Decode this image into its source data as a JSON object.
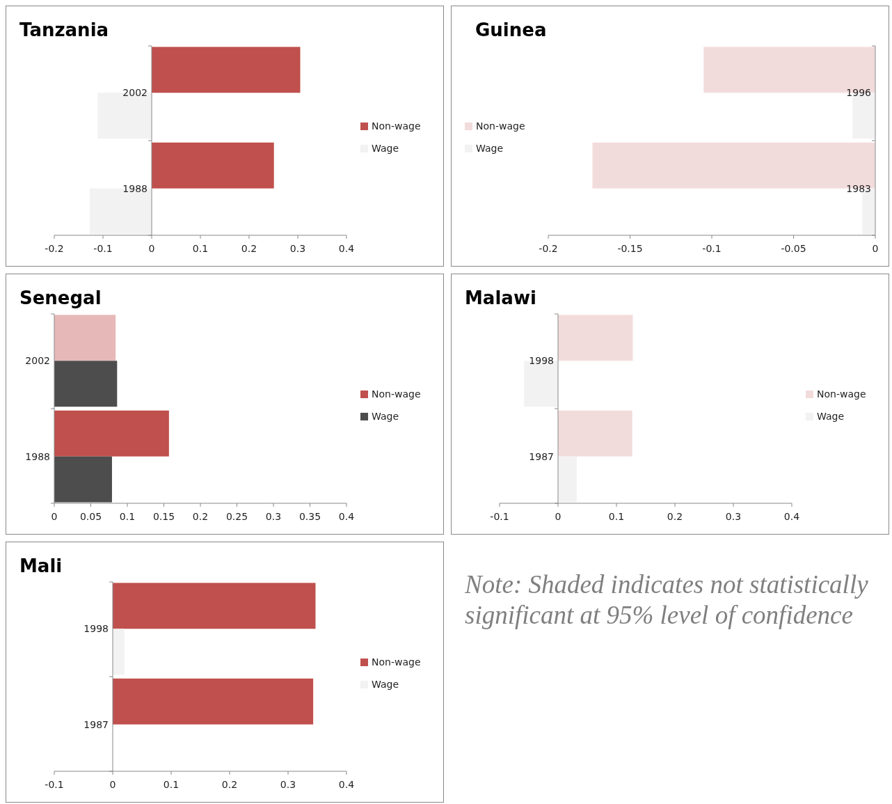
{
  "chart_data": [
    {
      "type": "bar",
      "orientation": "horizontal",
      "title": "Tanzania",
      "categories": [
        "2002",
        "1988"
      ],
      "xlim": [
        -0.2,
        0.4
      ],
      "xticks": [
        -0.2,
        -0.1,
        0,
        0.1,
        0.2,
        0.3,
        0.4
      ],
      "legend": "right",
      "series": [
        {
          "name": "Non-wage",
          "color": "#c0504d",
          "values": [
            0.305,
            0.251
          ]
        },
        {
          "name": "Wage",
          "color": "#f2f2f2",
          "values": [
            -0.111,
            -0.127
          ]
        }
      ]
    },
    {
      "type": "bar",
      "orientation": "horizontal",
      "title": "Guinea",
      "categories": [
        "1996",
        "1983"
      ],
      "xlim": [
        -0.2,
        0
      ],
      "xticks": [
        -0.2,
        -0.15,
        -0.1,
        -0.05,
        0
      ],
      "legend": "left",
      "series": [
        {
          "name": "Non-wage",
          "color": "#f2dcdb",
          "values": [
            -0.105,
            -0.173
          ]
        },
        {
          "name": "Wage",
          "color": "#f2f2f2",
          "values": [
            -0.014,
            -0.008
          ]
        }
      ]
    },
    {
      "type": "bar",
      "orientation": "horizontal",
      "title": "Senegal",
      "categories": [
        "2002",
        "1988"
      ],
      "xlim": [
        0,
        0.4
      ],
      "xticks": [
        0,
        0.05,
        0.1,
        0.15,
        0.2,
        0.25,
        0.3,
        0.35,
        0.4
      ],
      "legend": "right",
      "series": [
        {
          "name": "Non-wage",
          "color": "#c0504d",
          "colors": [
            "#e6b9b8",
            "#c0504d"
          ],
          "values": [
            0.084,
            0.157
          ]
        },
        {
          "name": "Wage",
          "color": "#4d4d4d",
          "values": [
            0.086,
            0.079
          ]
        }
      ]
    },
    {
      "type": "bar",
      "orientation": "horizontal",
      "title": "Malawi",
      "categories": [
        "1998",
        "1987"
      ],
      "xlim": [
        -0.1,
        0.4
      ],
      "xticks": [
        -0.1,
        0,
        0.1,
        0.2,
        0.3,
        0.4
      ],
      "legend": "right",
      "series": [
        {
          "name": "Non-wage",
          "color": "#f2dcdb",
          "values": [
            0.128,
            0.127
          ]
        },
        {
          "name": "Wage",
          "color": "#f2f2f2",
          "values": [
            -0.058,
            0.032
          ]
        }
      ]
    },
    {
      "type": "bar",
      "orientation": "horizontal",
      "title": "Mali",
      "categories": [
        "1998",
        "1987"
      ],
      "xlim": [
        -0.1,
        0.4
      ],
      "xticks": [
        -0.1,
        0,
        0.1,
        0.2,
        0.3,
        0.4
      ],
      "legend": "right",
      "series": [
        {
          "name": "Non-wage",
          "color": "#c0504d",
          "values": [
            0.347,
            0.343
          ]
        },
        {
          "name": "Wage",
          "color": "#f2f2f2",
          "values": [
            0.02,
            0
          ]
        }
      ]
    },
    {
      "type": "other",
      "annotations": [
        "Note: Shaded indicates not statistically significant at 95% level of confidence"
      ]
    }
  ]
}
